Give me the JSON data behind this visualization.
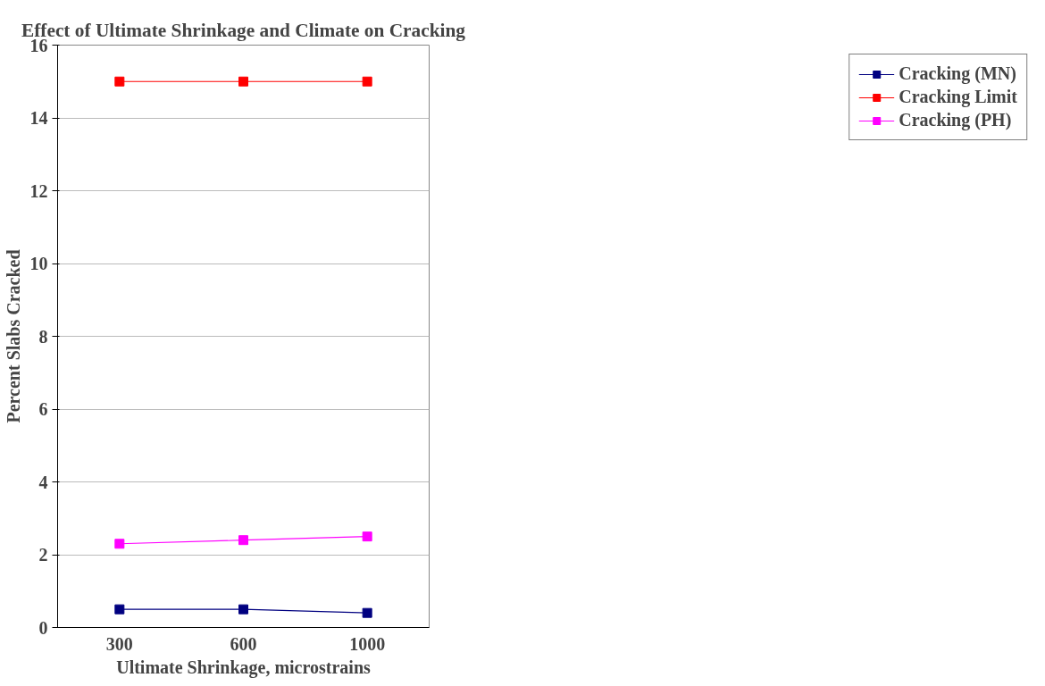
{
  "chart_data": {
    "type": "line",
    "title": "Effect of Ultimate Shrinkage and Climate on Cracking",
    "xlabel": "Ultimate Shrinkage, microstrains",
    "ylabel": "Percent Slabs Cracked",
    "categories": [
      "300",
      "600",
      "1000"
    ],
    "series": [
      {
        "name": "Cracking (MN)",
        "color": "#000080",
        "values": [
          0.5,
          0.5,
          0.4
        ]
      },
      {
        "name": "Cracking Limit",
        "color": "#ff0000",
        "values": [
          15,
          15,
          15
        ]
      },
      {
        "name": "Cracking (PH)",
        "color": "#ff00ff",
        "values": [
          2.3,
          2.4,
          2.5
        ]
      }
    ],
    "ylim": [
      0,
      16
    ],
    "yticks": [
      0,
      2,
      4,
      6,
      8,
      10,
      12,
      14,
      16
    ],
    "grid": "y",
    "legend": "right",
    "marker": "square",
    "line_style": "solid"
  }
}
